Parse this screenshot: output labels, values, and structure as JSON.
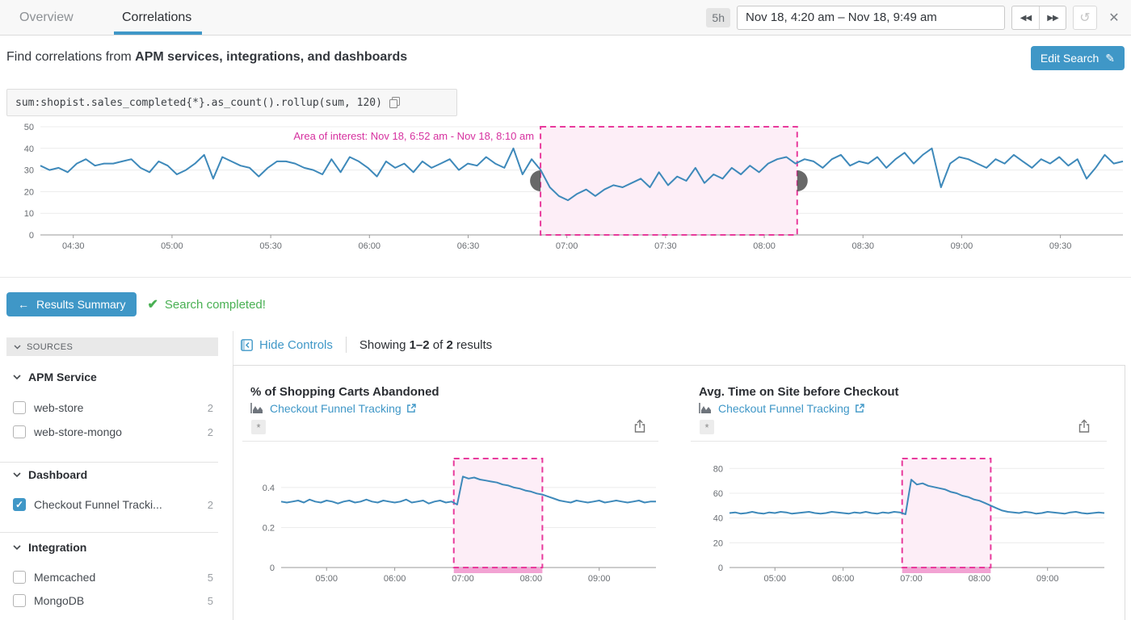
{
  "tabs": {
    "overview": "Overview",
    "correlations": "Correlations"
  },
  "timebar": {
    "duration": "5h",
    "range": "Nov 18, 4:20 am – Nov 18, 9:49 am",
    "rewind_icon": "◀◀",
    "forward_icon": "▶▶",
    "refresh_icon": "↺",
    "close_icon": "✕"
  },
  "header": {
    "find_prefix": "Find correlations from ",
    "find_bold": "APM services, integrations, and dashboards",
    "edit_search": "Edit Search",
    "pencil_icon": "✎"
  },
  "query": {
    "text": "sum:shopist.sales_completed{*}.as_count().rollup(sum, 120)"
  },
  "results_bar": {
    "back_arrow": "←",
    "summary_button": "Results Summary",
    "check_icon": "✔",
    "status": "Search completed!"
  },
  "sidebar": {
    "title": "SOURCES",
    "sections": [
      {
        "label": "APM Service",
        "items": [
          {
            "label": "web-store",
            "count": 2,
            "checked": false
          },
          {
            "label": "web-store-mongo",
            "count": 2,
            "checked": false
          }
        ]
      },
      {
        "label": "Dashboard",
        "items": [
          {
            "label": "Checkout Funnel Tracki...",
            "count": 2,
            "checked": true
          }
        ]
      },
      {
        "label": "Integration",
        "items": [
          {
            "label": "Memcached",
            "count": 5,
            "checked": false
          },
          {
            "label": "MongoDB",
            "count": 5,
            "checked": false
          }
        ]
      }
    ]
  },
  "controls": {
    "hide_controls": "Hide Controls",
    "showing_prefix": "Showing ",
    "showing_range": "1–2",
    "showing_mid": " of ",
    "showing_total": "2",
    "showing_suffix": " results"
  },
  "cards": [
    {
      "title": "% of Shopping Carts Abandoned",
      "link": "Checkout Funnel Tracking",
      "badge": "*"
    },
    {
      "title": "Avg. Time on Site before Checkout",
      "link": "Checkout Funnel Tracking",
      "badge": "*"
    }
  ],
  "colors": {
    "accent_blue": "#3f97c7",
    "line_blue": "#3e89ba",
    "success_green": "#49b053",
    "pink_stroke": "#e83a9c",
    "pink_fill": "#fdeef7",
    "pink_strip": "#f2a3d3",
    "pink_text": "#d6319f",
    "handle_gray": "#4d4d4d"
  },
  "chart_data": [
    {
      "name": "main_query_timeseries",
      "type": "line",
      "title": "sum:shopist.sales_completed{*}.as_count().rollup(sum, 120)",
      "x_unit": "minutes_since_midnight",
      "x_range": [
        260,
        589
      ],
      "y_range": [
        0,
        50
      ],
      "y_ticks": [
        0,
        10,
        20,
        30,
        40,
        50
      ],
      "x_ticks": [
        {
          "t": 270,
          "label": "04:30"
        },
        {
          "t": 300,
          "label": "05:00"
        },
        {
          "t": 330,
          "label": "05:30"
        },
        {
          "t": 360,
          "label": "06:00"
        },
        {
          "t": 390,
          "label": "06:30"
        },
        {
          "t": 420,
          "label": "07:00"
        },
        {
          "t": 450,
          "label": "07:30"
        },
        {
          "t": 480,
          "label": "08:00"
        },
        {
          "t": 510,
          "label": "08:30"
        },
        {
          "t": 540,
          "label": "09:00"
        },
        {
          "t": 570,
          "label": "09:30"
        }
      ],
      "area_of_interest": {
        "label": "Area of interest: Nov 18, 6:52 am - Nov 18, 8:10 am",
        "start_min": 412,
        "end_min": 490,
        "handles": true
      },
      "values": [
        32,
        30,
        31,
        29,
        33,
        35,
        32,
        33,
        33,
        34,
        35,
        31,
        29,
        34,
        32,
        28,
        30,
        33,
        37,
        26,
        36,
        34,
        32,
        31,
        27,
        31,
        34,
        34,
        33,
        31,
        30,
        28,
        35,
        29,
        36,
        34,
        31,
        27,
        34,
        31,
        33,
        29,
        34,
        31,
        33,
        35,
        30,
        33,
        32,
        36,
        33,
        31,
        40,
        28,
        35,
        30,
        22,
        18,
        16,
        19,
        21,
        18,
        21,
        23,
        22,
        24,
        26,
        22,
        29,
        23,
        27,
        25,
        31,
        24,
        28,
        26,
        31,
        28,
        32,
        29,
        33,
        35,
        36,
        33,
        35,
        34,
        31,
        35,
        37,
        32,
        34,
        33,
        36,
        31,
        35,
        38,
        33,
        37,
        40,
        22,
        33,
        36,
        35,
        33,
        31,
        35,
        33,
        37,
        34,
        31,
        35,
        33,
        36,
        32,
        35,
        26,
        31,
        37,
        33,
        34
      ]
    },
    {
      "name": "pct_shopping_carts_abandoned",
      "type": "line",
      "title": "% of Shopping Carts Abandoned",
      "x_unit": "minutes_since_midnight",
      "x_range": [
        260,
        590
      ],
      "y_range": [
        0,
        0.545
      ],
      "y_ticks": [
        0,
        0.2,
        0.4
      ],
      "x_ticks": [
        {
          "t": 300,
          "label": "05:00"
        },
        {
          "t": 360,
          "label": "06:00"
        },
        {
          "t": 420,
          "label": "07:00"
        },
        {
          "t": 480,
          "label": "08:00"
        },
        {
          "t": 540,
          "label": "09:00"
        }
      ],
      "area_of_interest": {
        "start_min": 412,
        "end_min": 490,
        "strip": true
      },
      "values": [
        0.33,
        0.325,
        0.33,
        0.335,
        0.325,
        0.34,
        0.33,
        0.325,
        0.335,
        0.33,
        0.32,
        0.33,
        0.335,
        0.325,
        0.33,
        0.34,
        0.33,
        0.325,
        0.335,
        0.33,
        0.325,
        0.33,
        0.34,
        0.325,
        0.33,
        0.335,
        0.32,
        0.33,
        0.335,
        0.325,
        0.33,
        0.315,
        0.455,
        0.445,
        0.45,
        0.44,
        0.435,
        0.43,
        0.425,
        0.415,
        0.41,
        0.4,
        0.395,
        0.385,
        0.38,
        0.37,
        0.365,
        0.355,
        0.345,
        0.335,
        0.33,
        0.325,
        0.335,
        0.33,
        0.325,
        0.33,
        0.335,
        0.325,
        0.33,
        0.335,
        0.33,
        0.325,
        0.33,
        0.335,
        0.325,
        0.33,
        0.33
      ]
    },
    {
      "name": "avg_time_on_site_before_checkout",
      "type": "line",
      "title": "Avg. Time on Site before Checkout",
      "x_unit": "minutes_since_midnight",
      "x_range": [
        260,
        590
      ],
      "y_range": [
        0,
        88
      ],
      "y_ticks": [
        0,
        20,
        40,
        60,
        80
      ],
      "x_ticks": [
        {
          "t": 300,
          "label": "05:00"
        },
        {
          "t": 360,
          "label": "06:00"
        },
        {
          "t": 420,
          "label": "07:00"
        },
        {
          "t": 480,
          "label": "08:00"
        },
        {
          "t": 540,
          "label": "09:00"
        }
      ],
      "area_of_interest": {
        "start_min": 412,
        "end_min": 490,
        "strip": true
      },
      "values": [
        44,
        44.5,
        43.5,
        44,
        45,
        44,
        43.5,
        44.5,
        44,
        45,
        44.5,
        43.5,
        44,
        44.5,
        45,
        44,
        43.5,
        44,
        45,
        44.5,
        44,
        43.5,
        44.5,
        44,
        45,
        44,
        43.5,
        44.5,
        44,
        45,
        44.5,
        43,
        71,
        67,
        68,
        66,
        65,
        64,
        63,
        61,
        60,
        58,
        57,
        55,
        54,
        52,
        50,
        48,
        46,
        45,
        44.5,
        44,
        45,
        44.5,
        43.5,
        44,
        45,
        44.5,
        44,
        43.5,
        44.5,
        45,
        44,
        43.5,
        44,
        44.5,
        44
      ]
    }
  ]
}
